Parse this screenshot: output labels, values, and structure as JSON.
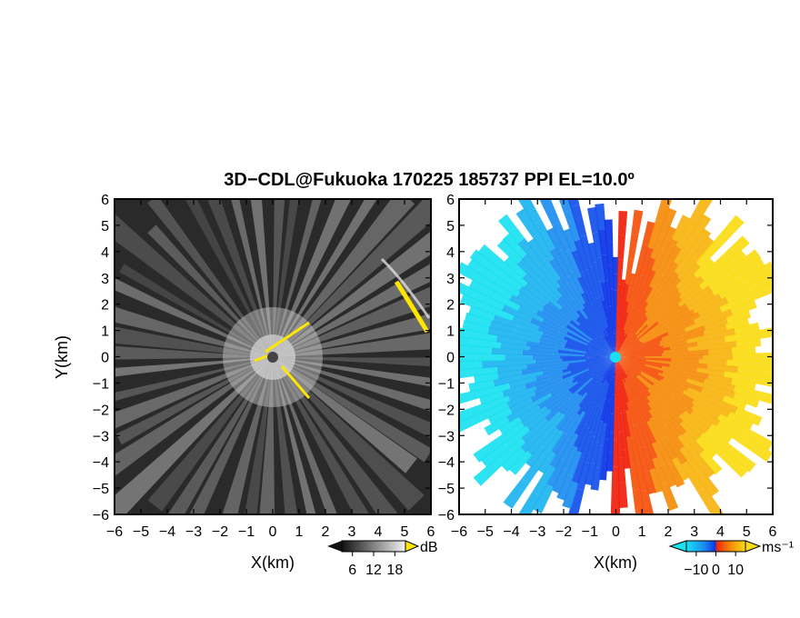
{
  "title": "3D−CDL@Fukuoka 170225 185737 PPI EL=10.0º",
  "chart_data": [
    {
      "type": "heatmap",
      "panel": "left",
      "quantity": "backscatter intensity",
      "xlabel": "X(km)",
      "ylabel": "Y(km)",
      "xlim": [
        -6,
        6
      ],
      "ylim": [
        -6,
        6
      ],
      "xticks": [
        "−6",
        "−5",
        "−4",
        "−3",
        "−2",
        "−1",
        "0",
        "1",
        "2",
        "3",
        "4",
        "5",
        "6"
      ],
      "yticks": [
        "−6",
        "−5",
        "−4",
        "−3",
        "−2",
        "−1",
        "0",
        "1",
        "2",
        "3",
        "4",
        "5",
        "6"
      ],
      "colormap": "grayscale",
      "colorbar": {
        "unit": "dB",
        "ticks": [
          "6",
          "12",
          "18"
        ],
        "range": [
          3,
          21
        ]
      },
      "colors": {
        "low": "#111111",
        "high": "#f2f2f2",
        "saturated": "#ffe600"
      }
    },
    {
      "type": "heatmap",
      "panel": "right",
      "quantity": "radial velocity",
      "xlabel": "X(km)",
      "ylabel": "",
      "xlim": [
        -6,
        6
      ],
      "ylim": [
        -6,
        6
      ],
      "xticks": [
        "−6",
        "−5",
        "−4",
        "−3",
        "−2",
        "−1",
        "0",
        "1",
        "2",
        "3",
        "4",
        "5",
        "6"
      ],
      "yticks": [
        "−6",
        "−5",
        "−4",
        "−3",
        "−2",
        "−1",
        "0",
        "1",
        "2",
        "3",
        "4",
        "5",
        "6"
      ],
      "colormap": "cyan-blue-red-yellow",
      "colorbar": {
        "unit": "ms⁻¹",
        "ticks": [
          "−10",
          "0",
          "10"
        ],
        "range": [
          -15,
          15
        ]
      },
      "colors": {
        "cyan": "#19e1f0",
        "blue": "#0a32e6",
        "red": "#f01e0a",
        "yellow": "#fadc14"
      }
    }
  ]
}
